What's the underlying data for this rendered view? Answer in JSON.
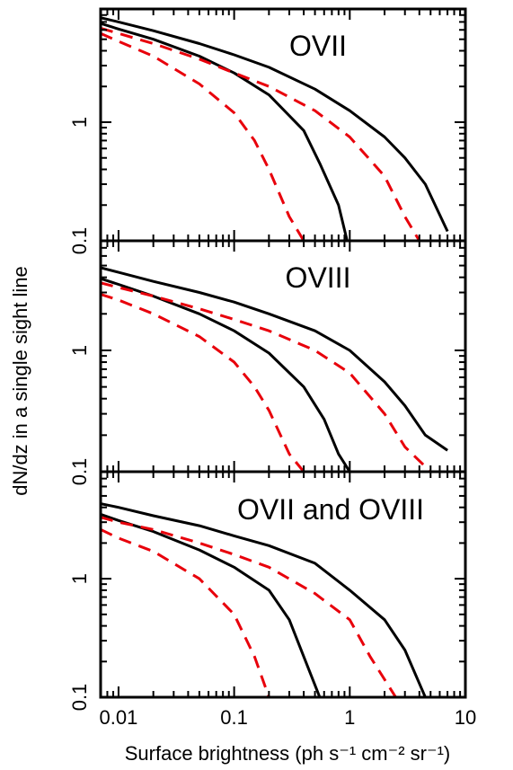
{
  "chart_data": {
    "type": "line",
    "xlabel": "Surface brightness (ph s⁻¹  cm⁻² sr⁻¹)",
    "ylabel": "dN/dz in a single sight line",
    "x_scale": "log",
    "y_scale": "log",
    "xlim": [
      0.007,
      10
    ],
    "x_ticks": [
      0.01,
      0.1,
      1,
      10
    ],
    "x_tick_labels": [
      "0.01",
      "0.1",
      "1",
      "10"
    ],
    "y_ticks": [
      0.1,
      1
    ],
    "y_tick_labels": [
      "0.1",
      "1"
    ],
    "series_styles": [
      {
        "color": "#000000",
        "dash": "solid"
      },
      {
        "color": "#000000",
        "dash": "solid"
      },
      {
        "color": "#e8000b",
        "dash": "dashed"
      },
      {
        "color": "#e8000b",
        "dash": "dashed"
      }
    ],
    "panels": [
      {
        "title": "OVII",
        "ylim": [
          0.1,
          9
        ],
        "series": [
          {
            "x": [
              0.007,
              0.01,
              0.02,
              0.05,
              0.1,
              0.2,
              0.5,
              1,
              2,
              3,
              4.5,
              7
            ],
            "y": [
              7.6,
              7.0,
              5.9,
              4.6,
              3.7,
              2.9,
              1.9,
              1.25,
              0.75,
              0.5,
              0.3,
              0.12
            ]
          },
          {
            "x": [
              0.007,
              0.01,
              0.02,
              0.05,
              0.1,
              0.2,
              0.4,
              0.55,
              0.8,
              0.95
            ],
            "y": [
              6.8,
              6.1,
              5.0,
              3.6,
              2.6,
              1.7,
              0.85,
              0.45,
              0.2,
              0.1
            ]
          },
          {
            "x": [
              0.007,
              0.01,
              0.02,
              0.05,
              0.1,
              0.2,
              0.5,
              1,
              2,
              3,
              4
            ],
            "y": [
              6.2,
              5.6,
              4.6,
              3.4,
              2.6,
              2.0,
              1.25,
              0.75,
              0.35,
              0.16,
              0.1
            ]
          },
          {
            "x": [
              0.007,
              0.01,
              0.02,
              0.05,
              0.1,
              0.15,
              0.2,
              0.3,
              0.4
            ],
            "y": [
              5.6,
              4.8,
              3.6,
              2.1,
              1.2,
              0.7,
              0.4,
              0.16,
              0.1
            ]
          }
        ]
      },
      {
        "title": "OVIII",
        "ylim": [
          0.1,
          8
        ],
        "series": [
          {
            "x": [
              0.007,
              0.01,
              0.02,
              0.05,
              0.1,
              0.2,
              0.5,
              1,
              2,
              3,
              4.5,
              7
            ],
            "y": [
              4.8,
              4.4,
              3.7,
              3.0,
              2.5,
              2.0,
              1.45,
              1.0,
              0.55,
              0.35,
              0.2,
              0.15
            ]
          },
          {
            "x": [
              0.007,
              0.01,
              0.02,
              0.05,
              0.1,
              0.2,
              0.4,
              0.6,
              0.8,
              1.0
            ],
            "y": [
              3.9,
              3.5,
              2.8,
              2.0,
              1.45,
              0.95,
              0.5,
              0.27,
              0.14,
              0.1
            ]
          },
          {
            "x": [
              0.007,
              0.01,
              0.02,
              0.05,
              0.1,
              0.2,
              0.5,
              1,
              2,
              3,
              5
            ],
            "y": [
              3.6,
              3.3,
              2.8,
              2.2,
              1.8,
              1.45,
              1.0,
              0.65,
              0.3,
              0.16,
              0.1
            ]
          },
          {
            "x": [
              0.007,
              0.01,
              0.02,
              0.05,
              0.1,
              0.15,
              0.2,
              0.3,
              0.4
            ],
            "y": [
              2.9,
              2.6,
              2.0,
              1.3,
              0.8,
              0.5,
              0.32,
              0.14,
              0.1
            ]
          }
        ]
      },
      {
        "title": "OVII and OVIII",
        "ylim": [
          0.1,
          8
        ],
        "series": [
          {
            "x": [
              0.007,
              0.01,
              0.02,
              0.05,
              0.1,
              0.2,
              0.5,
              1,
              2,
              3,
              4.5
            ],
            "y": [
              4.3,
              4.0,
              3.4,
              2.8,
              2.3,
              1.9,
              1.35,
              0.8,
              0.45,
              0.25,
              0.1
            ]
          },
          {
            "x": [
              0.007,
              0.01,
              0.02,
              0.05,
              0.1,
              0.2,
              0.3,
              0.4,
              0.55
            ],
            "y": [
              3.5,
              3.1,
              2.5,
              1.75,
              1.25,
              0.8,
              0.45,
              0.22,
              0.1
            ]
          },
          {
            "x": [
              0.007,
              0.01,
              0.02,
              0.05,
              0.1,
              0.2,
              0.5,
              1,
              1.5,
              2.5
            ],
            "y": [
              3.3,
              3.0,
              2.6,
              2.0,
              1.6,
              1.25,
              0.75,
              0.45,
              0.22,
              0.1
            ]
          },
          {
            "x": [
              0.007,
              0.01,
              0.02,
              0.05,
              0.1,
              0.15,
              0.2
            ],
            "y": [
              2.6,
              2.2,
              1.7,
              1.0,
              0.5,
              0.22,
              0.1
            ]
          }
        ]
      }
    ]
  }
}
